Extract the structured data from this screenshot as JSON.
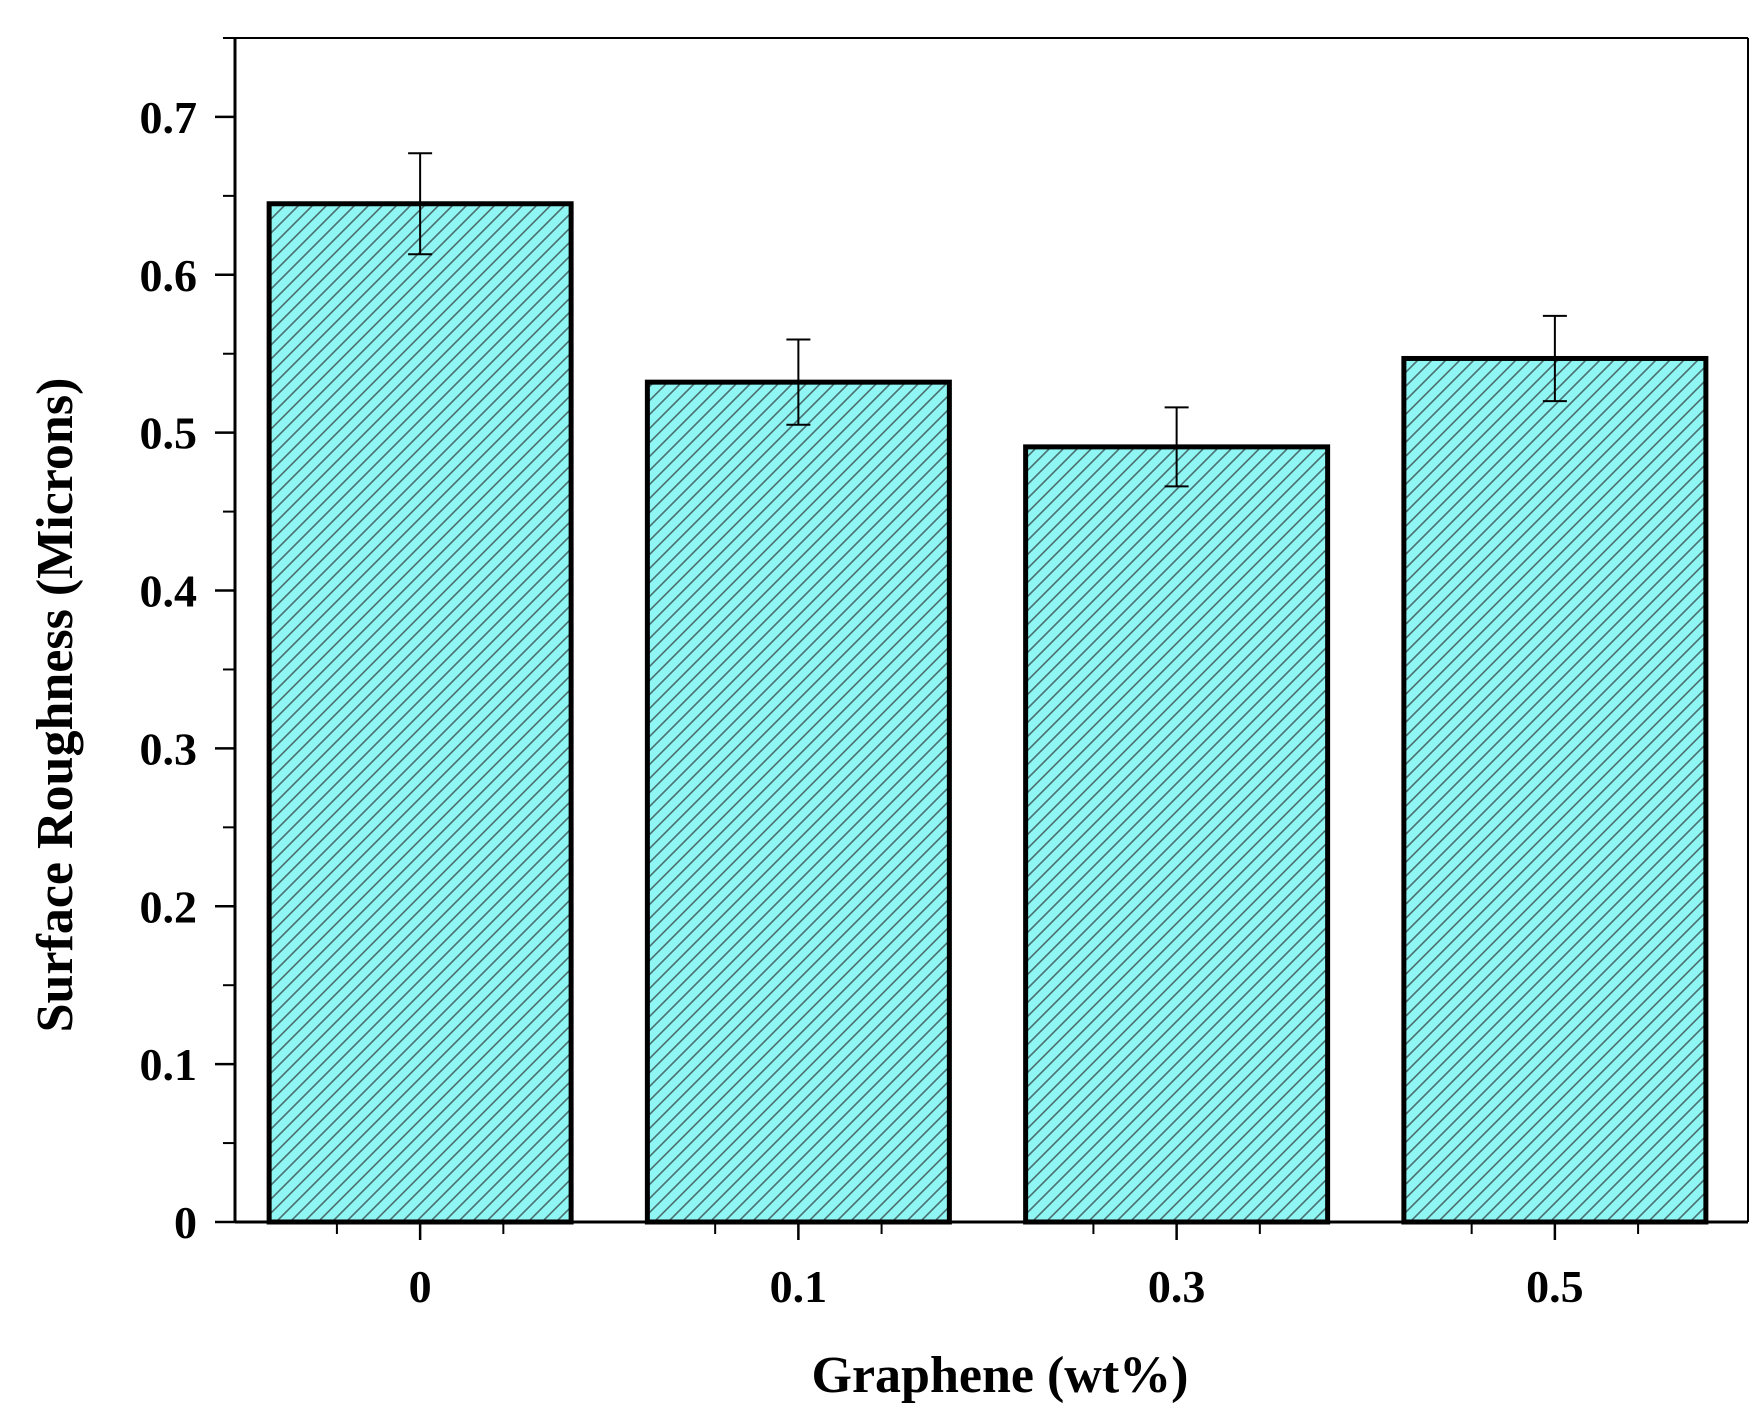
{
  "chart_data": {
    "type": "bar",
    "title": "",
    "xlabel": "Graphene (wt%)",
    "ylabel": "Surface Roughness (Microns)",
    "categories": [
      "0",
      "0.1",
      "0.3",
      "0.5"
    ],
    "values": [
      0.645,
      0.532,
      0.491,
      0.547
    ],
    "errors": [
      0.032,
      0.027,
      0.025,
      0.027
    ],
    "ylim": [
      0,
      0.75
    ],
    "yticks": [
      0,
      0.1,
      0.2,
      0.3,
      0.4,
      0.5,
      0.6,
      0.7
    ],
    "ytick_labels": [
      "0",
      "0.1",
      "0.2",
      "0.3",
      "0.4",
      "0.5",
      "0.6",
      "0.7"
    ],
    "grid": false,
    "legend": "none",
    "bar_color": "#8ff6f4",
    "hatch_color": "#4a6f70",
    "edge_color": "#000000"
  }
}
